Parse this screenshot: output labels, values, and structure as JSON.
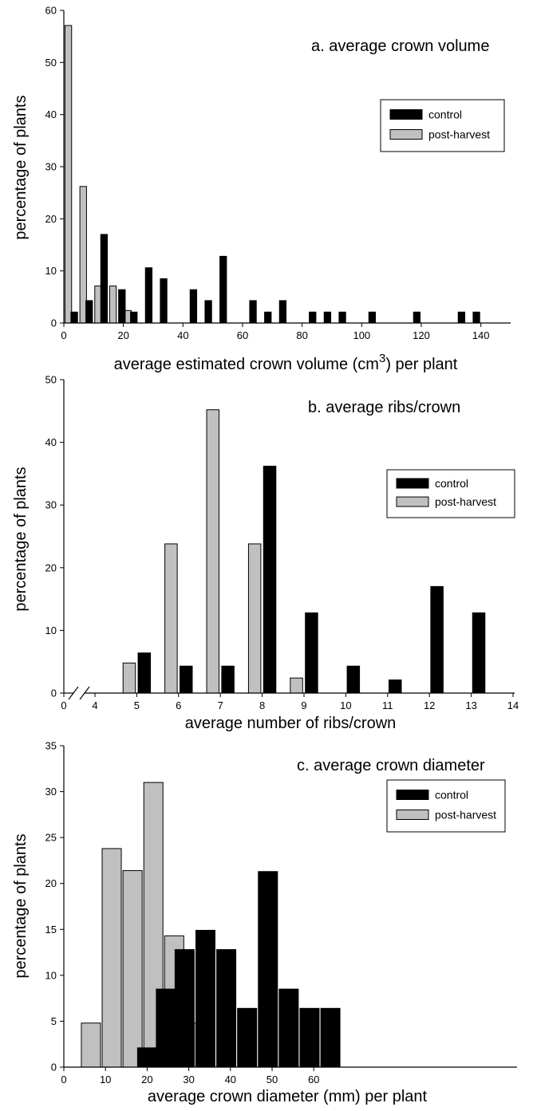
{
  "colors": {
    "control": "#000000",
    "post_harvest": "#c0c0c0",
    "axis": "#000000"
  },
  "chart_data": [
    {
      "type": "bar",
      "title": "a. average crown volume",
      "xlabel_main": "average estimated crown volume (cm",
      "xlabel_sup": "3",
      "xlabel_tail": ") per plant",
      "ylabel": "percentage of plants",
      "xlim": [
        0,
        150
      ],
      "ylim": [
        0,
        60
      ],
      "xticks": [
        0,
        20,
        40,
        60,
        80,
        100,
        120,
        140
      ],
      "yticks": [
        0,
        10,
        20,
        30,
        40,
        50,
        60
      ],
      "legend": [
        "control",
        "post-harvest"
      ],
      "legend_position": "upper-right",
      "series": [
        {
          "name": "control",
          "x": [
            3.5,
            8.5,
            13.5,
            19.5,
            23.5,
            28.5,
            33.5,
            43.5,
            48.5,
            53.5,
            63.5,
            68.5,
            73.5,
            83.5,
            88.5,
            93.5,
            103.5,
            118.5,
            133.5,
            138.5
          ],
          "values": [
            2.1,
            4.3,
            17.0,
            6.4,
            2.1,
            10.6,
            8.5,
            6.4,
            4.3,
            12.8,
            4.3,
            2.1,
            4.3,
            2.1,
            2.1,
            2.1,
            2.1,
            2.1,
            2.1,
            2.1
          ]
        },
        {
          "name": "post-harvest",
          "x": [
            1.5,
            6.5,
            11.5,
            16.5,
            21.5
          ],
          "values": [
            57.1,
            26.2,
            7.1,
            7.1,
            2.4
          ]
        }
      ]
    },
    {
      "type": "bar",
      "title": "b. average ribs/crown",
      "xlabel": "average number of ribs/crown",
      "ylabel": "percentage of plants",
      "xlim": [
        4,
        14
      ],
      "ylim": [
        0,
        50
      ],
      "axis_break": true,
      "xticks": [
        0,
        4,
        5,
        6,
        7,
        8,
        9,
        10,
        11,
        12,
        13,
        14
      ],
      "yticks": [
        0,
        10,
        20,
        30,
        40,
        50
      ],
      "legend": [
        "control",
        "post-harvest"
      ],
      "legend_position": "right",
      "series": [
        {
          "name": "control",
          "x": [
            5.18,
            6.18,
            7.18,
            8.18,
            9.18,
            10.18,
            11.18,
            12.18,
            13.18
          ],
          "values": [
            6.4,
            4.3,
            4.3,
            36.2,
            12.8,
            4.3,
            2.1,
            17.0,
            12.8
          ]
        },
        {
          "name": "post-harvest",
          "x": [
            4.82,
            5.82,
            6.82,
            7.82,
            8.82
          ],
          "values": [
            4.8,
            23.8,
            45.2,
            23.8,
            2.4
          ]
        }
      ]
    },
    {
      "type": "bar",
      "title": "c. average crown diameter",
      "xlabel": "average crown diameter (mm) per plant",
      "ylabel": "percentage of plants",
      "xlim": [
        0,
        68
      ],
      "ylim": [
        0,
        35
      ],
      "xticks": [
        0,
        10,
        20,
        30,
        40,
        50,
        60
      ],
      "yticks": [
        0,
        5,
        10,
        15,
        20,
        25,
        30,
        35
      ],
      "legend": [
        "control",
        "post-harvest"
      ],
      "legend_position": "upper-right",
      "series": [
        {
          "name": "control",
          "x": [
            20.0,
            24.5,
            29.0,
            34.0,
            39.0,
            44.0,
            49.0,
            54.0,
            59.0,
            64.0
          ],
          "values": [
            2.1,
            8.5,
            12.8,
            14.9,
            12.8,
            6.4,
            21.3,
            8.5,
            6.4,
            6.4
          ]
        },
        {
          "name": "post-harvest",
          "x": [
            6.5,
            11.5,
            16.5,
            21.5,
            26.5,
            31.5
          ],
          "values": [
            4.8,
            23.8,
            21.4,
            31.0,
            14.3,
            4.8
          ]
        }
      ]
    }
  ]
}
